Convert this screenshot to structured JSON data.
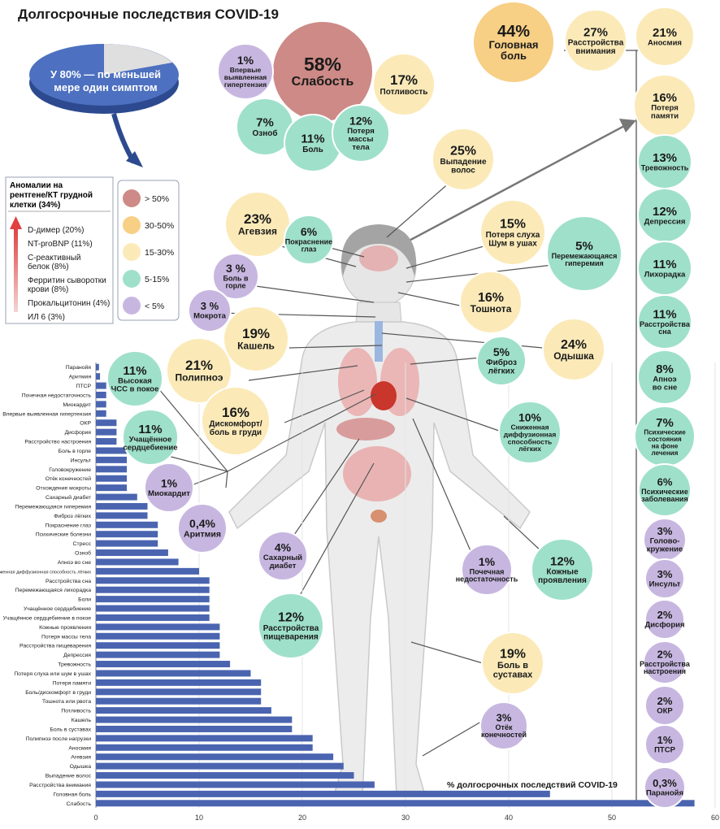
{
  "title": "Долгосрочные последствия COVID-19",
  "pie": {
    "label_lines": [
      "У 80% — по меньшей",
      "мере один симптом"
    ],
    "percent_with_symptom": 80
  },
  "labs": {
    "title_lines": [
      "Аномалии на",
      "рентгене/КТ грудной",
      "клетки (34%)"
    ],
    "items": [
      [
        "D-димер (20%)"
      ],
      [
        "NT-proBNP (11%)"
      ],
      [
        "С-реактивный",
        "белок (8%)"
      ],
      [
        "Ферритин сыворотки",
        "крови (8%)"
      ],
      [
        "Прокальцитонин (4%)"
      ],
      [
        "ИЛ 6 (3%)"
      ]
    ]
  },
  "legend": {
    "items": [
      {
        "label": "> 50%",
        "color": "#cd8a86"
      },
      {
        "label": "30-50%",
        "color": "#f7cf85"
      },
      {
        "label": "15-30%",
        "color": "#fbeab8"
      },
      {
        "label": "5-15%",
        "color": "#9fe0cb"
      },
      {
        "label": "< 5%",
        "color": "#c7b7e0"
      }
    ]
  },
  "bubbles": [
    {
      "pct": "58%",
      "lines": [
        "Слабость"
      ],
      "color": "#cd8a86"
    },
    {
      "pct": "1%",
      "lines": [
        "Впервые",
        "выявленная",
        "гипертензия"
      ],
      "color": "#c7b7e0"
    },
    {
      "pct": "17%",
      "lines": [
        "Потливость"
      ],
      "color": "#fbeab8"
    },
    {
      "pct": "7%",
      "lines": [
        "Озноб"
      ],
      "color": "#9fe0cb"
    },
    {
      "pct": "11%",
      "lines": [
        "Боль"
      ],
      "color": "#9fe0cb"
    },
    {
      "pct": "12%",
      "lines": [
        "Потеря",
        "массы",
        "тела"
      ],
      "color": "#9fe0cb"
    },
    {
      "pct": "44%",
      "lines": [
        "Головная",
        "боль"
      ],
      "color": "#f7cf85"
    },
    {
      "pct": "27%",
      "lines": [
        "Расстройства",
        "внимания"
      ],
      "color": "#fbeab8"
    },
    {
      "pct": "25%",
      "lines": [
        "Выпадение",
        "волос"
      ],
      "color": "#fbeab8"
    },
    {
      "pct": "23%",
      "lines": [
        "Агевзия"
      ],
      "color": "#fbeab8"
    },
    {
      "pct": "6%",
      "lines": [
        "Покраснение",
        "глаз"
      ],
      "color": "#9fe0cb"
    },
    {
      "pct": "15%",
      "lines": [
        "Потеря слуха",
        "Шум в ушах"
      ],
      "color": "#fbeab8"
    },
    {
      "pct": "5%",
      "lines": [
        "Перемежающаяся",
        "гиперемия"
      ],
      "color": "#9fe0cb"
    },
    {
      "pct": "3 %",
      "lines": [
        "Боль в",
        "горле"
      ],
      "color": "#c7b7e0"
    },
    {
      "pct": "3 %",
      "lines": [
        "Мокрота"
      ],
      "color": "#c7b7e0"
    },
    {
      "pct": "16%",
      "lines": [
        "Тошнота"
      ],
      "color": "#fbeab8"
    },
    {
      "pct": "19%",
      "lines": [
        "Кашель"
      ],
      "color": "#fbeab8"
    },
    {
      "pct": "24%",
      "lines": [
        "Одышка"
      ],
      "color": "#fbeab8"
    },
    {
      "pct": "21%",
      "lines": [
        "Полипноэ"
      ],
      "color": "#fbeab8"
    },
    {
      "pct": "5%",
      "lines": [
        "Фиброз",
        "лёгких"
      ],
      "color": "#9fe0cb"
    },
    {
      "pct": "11%",
      "lines": [
        "Высокая",
        "ЧСС в покое"
      ],
      "color": "#9fe0cb"
    },
    {
      "pct": "16%",
      "lines": [
        "Дискомфорт/",
        "боль в груди"
      ],
      "color": "#fbeab8"
    },
    {
      "pct": "10%",
      "lines": [
        "Сниженная",
        "диффузионная",
        "способность",
        "лёгких"
      ],
      "color": "#9fe0cb"
    },
    {
      "pct": "11%",
      "lines": [
        "Учащённое",
        "сердцебиение"
      ],
      "color": "#9fe0cb"
    },
    {
      "pct": "1%",
      "lines": [
        "Миокардит"
      ],
      "color": "#c7b7e0"
    },
    {
      "pct": "0,4%",
      "lines": [
        "Аритмия"
      ],
      "color": "#c7b7e0"
    },
    {
      "pct": "4%",
      "lines": [
        "Сахарный",
        "диабет"
      ],
      "color": "#c7b7e0"
    },
    {
      "pct": "1%",
      "lines": [
        "Почечная",
        "недостаточность"
      ],
      "color": "#c7b7e0"
    },
    {
      "pct": "12%",
      "lines": [
        "Кожные",
        "проявления"
      ],
      "color": "#9fe0cb"
    },
    {
      "pct": "12%",
      "lines": [
        "Расстройства",
        "пищеварения"
      ],
      "color": "#9fe0cb"
    },
    {
      "pct": "19%",
      "lines": [
        "Боль в",
        "суставах"
      ],
      "color": "#fbeab8"
    },
    {
      "pct": "3%",
      "lines": [
        "Отёк",
        "конечностей"
      ],
      "color": "#c7b7e0"
    }
  ],
  "right_column": [
    {
      "pct": "21%",
      "lines": [
        "Аносмия"
      ],
      "color": "#fbeab8"
    },
    {
      "pct": "16%",
      "lines": [
        "Потеря",
        "памяти"
      ],
      "color": "#fbeab8"
    },
    {
      "pct": "13%",
      "lines": [
        "Тревожность"
      ],
      "color": "#9fe0cb"
    },
    {
      "pct": "12%",
      "lines": [
        "Депрессия"
      ],
      "color": "#9fe0cb"
    },
    {
      "pct": "11%",
      "lines": [
        "Лихорадка"
      ],
      "color": "#9fe0cb"
    },
    {
      "pct": "11%",
      "lines": [
        "Расстройства",
        "сна"
      ],
      "color": "#9fe0cb"
    },
    {
      "pct": "8%",
      "lines": [
        "Апноэ",
        "во сне"
      ],
      "color": "#9fe0cb"
    },
    {
      "pct": "7%",
      "lines": [
        "Психические",
        "состояния",
        "на фоне",
        "лечения"
      ],
      "color": "#9fe0cb"
    },
    {
      "pct": "6%",
      "lines": [
        "Психические",
        "заболевания"
      ],
      "color": "#9fe0cb"
    },
    {
      "pct": "3%",
      "lines": [
        "Голово-",
        "кружение"
      ],
      "color": "#c7b7e0"
    },
    {
      "pct": "3%",
      "lines": [
        "Инсульт"
      ],
      "color": "#c7b7e0"
    },
    {
      "pct": "2%",
      "lines": [
        "Дисфория"
      ],
      "color": "#c7b7e0"
    },
    {
      "pct": "2%",
      "lines": [
        "Расстройства",
        "настроения"
      ],
      "color": "#c7b7e0"
    },
    {
      "pct": "2%",
      "lines": [
        "ОКР"
      ],
      "color": "#c7b7e0"
    },
    {
      "pct": "1%",
      "lines": [
        "ПТСР"
      ],
      "color": "#c7b7e0"
    },
    {
      "pct": "0,3%",
      "lines": [
        "Паранойя"
      ],
      "color": "#c7b7e0"
    }
  ],
  "chart_data": {
    "type": "bar",
    "orientation": "horizontal",
    "title": "% долгосрочных последствий COVID-19",
    "xlim": [
      0,
      60
    ],
    "x_ticks": [
      0,
      10,
      20,
      30,
      40,
      50,
      60
    ],
    "bar_color": "#4a64b0",
    "categories": [
      "Паранойя",
      "Аритмия",
      "ПТСР",
      "Почечная недостаточность",
      "Миокардит",
      "Впервые выявленная гипертензия",
      "ОКР",
      "Дисфория",
      "Расстройство настроения",
      "Боль в горле",
      "Инсульт",
      "Головокружение",
      "Отёк конечностей",
      "Отхождение мокроты",
      "Сахарный диабет",
      "Перемежающаяся гиперемия",
      "Фиброз лёгких",
      "Покраснение глаз",
      "Психические болезни",
      "Стресс",
      "Озноб",
      "Апноэ во сне",
      "Сниженная диффузионная способность лёгких",
      "Расстройства сна",
      "Перемежающаяся лихорадка",
      "Боли",
      "Учащённое сердцебиение",
      "Учащённое сердцебиение в покое",
      "Кожные проявления",
      "Потеря массы тела",
      "Расстройства пищеварения",
      "Депрессия",
      "Тревожность",
      "Потеря слуха или шум в ушах",
      "Потеря памяти",
      "Боль/дискомфорт в груди",
      "Тошнота или рвота",
      "Потливость",
      "Кашель",
      "Боль в суставах",
      "Полипноэ после нагрузки",
      "Аносмия",
      "Агевзия",
      "Одышка",
      "Выпадение волос",
      "Расстройства внимания",
      "Головная боль",
      "Слабость"
    ],
    "values": [
      0.3,
      0.4,
      1,
      1,
      1,
      1,
      2,
      2,
      2,
      3,
      3,
      3,
      3,
      3,
      4,
      5,
      5,
      6,
      6,
      6,
      7,
      8,
      10,
      11,
      11,
      11,
      11,
      11,
      12,
      12,
      12,
      12,
      13,
      15,
      16,
      16,
      16,
      17,
      19,
      19,
      21,
      21,
      23,
      24,
      25,
      27,
      44,
      58
    ]
  }
}
